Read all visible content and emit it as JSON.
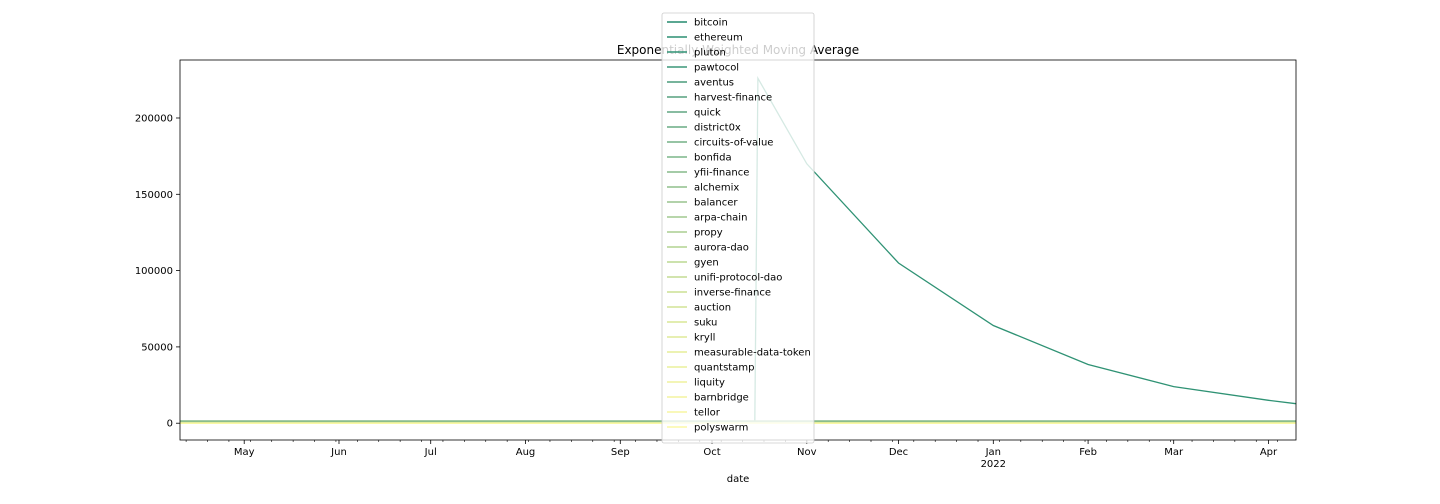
{
  "chart_data": {
    "type": "line",
    "title": "Exponentially Weighted Moving Average",
    "xlabel": "date",
    "ylabel": "",
    "x_range": [
      "2021-04-10",
      "2022-04-10"
    ],
    "ylim": [
      -11000,
      238000
    ],
    "y_ticks": [
      0,
      50000,
      100000,
      150000,
      200000
    ],
    "y_tick_labels": [
      "0",
      "50000",
      "100000",
      "150000",
      "200000"
    ],
    "x_ticks": [
      {
        "date": "2021-05-01",
        "label": "May",
        "sublabel": ""
      },
      {
        "date": "2021-06-01",
        "label": "Jun",
        "sublabel": ""
      },
      {
        "date": "2021-07-01",
        "label": "Jul",
        "sublabel": ""
      },
      {
        "date": "2021-08-01",
        "label": "Aug",
        "sublabel": ""
      },
      {
        "date": "2021-09-01",
        "label": "Sep",
        "sublabel": ""
      },
      {
        "date": "2021-10-01",
        "label": "Oct",
        "sublabel": ""
      },
      {
        "date": "2021-11-01",
        "label": "Nov",
        "sublabel": ""
      },
      {
        "date": "2021-12-01",
        "label": "Dec",
        "sublabel": ""
      },
      {
        "date": "2022-01-01",
        "label": "Jan",
        "sublabel": "2022"
      },
      {
        "date": "2022-02-01",
        "label": "Feb",
        "sublabel": ""
      },
      {
        "date": "2022-03-01",
        "label": "Mar",
        "sublabel": ""
      },
      {
        "date": "2022-04-01",
        "label": "Apr",
        "sublabel": ""
      }
    ],
    "grid": false,
    "legend_position": "top-center",
    "series": [
      {
        "name": "bitcoin",
        "color": "#238a6e",
        "points": [
          [
            "2021-04-10",
            1000
          ],
          [
            "2022-04-10",
            1000
          ]
        ]
      },
      {
        "name": "ethereum",
        "color": "#2b8f72",
        "points": [
          [
            "2021-04-10",
            300
          ],
          [
            "2022-04-10",
            300
          ]
        ]
      },
      {
        "name": "pluton",
        "color": "#2f9274",
        "points": [
          [
            "2021-10-15",
            0
          ],
          [
            "2021-10-16",
            226000
          ],
          [
            "2021-11-01",
            170000
          ],
          [
            "2021-12-01",
            105000
          ],
          [
            "2022-01-01",
            64000
          ],
          [
            "2022-02-01",
            38500
          ],
          [
            "2022-03-01",
            24000
          ],
          [
            "2022-04-01",
            15000
          ],
          [
            "2022-04-10",
            12800
          ]
        ]
      },
      {
        "name": "pawtocol",
        "color": "#3c9778",
        "points": [
          [
            "2021-04-10",
            100
          ],
          [
            "2022-04-10",
            100
          ]
        ]
      },
      {
        "name": "aventus",
        "color": "#4a9c7c",
        "points": [
          [
            "2021-04-10",
            100
          ],
          [
            "2022-04-10",
            100
          ]
        ]
      },
      {
        "name": "harvest-finance",
        "color": "#56a17f",
        "points": [
          [
            "2021-04-10",
            200
          ],
          [
            "2022-04-10",
            200
          ]
        ]
      },
      {
        "name": "quick",
        "color": "#60a682",
        "points": [
          [
            "2021-04-10",
            300
          ],
          [
            "2022-04-10",
            300
          ]
        ]
      },
      {
        "name": "district0x",
        "color": "#69ab84",
        "points": [
          [
            "2021-04-10",
            100
          ],
          [
            "2022-04-10",
            100
          ]
        ]
      },
      {
        "name": "circuits-of-value",
        "color": "#73b086",
        "points": [
          [
            "2021-04-10",
            100
          ],
          [
            "2022-04-10",
            100
          ]
        ]
      },
      {
        "name": "bonfida",
        "color": "#7cb588",
        "points": [
          [
            "2021-04-10",
            100
          ],
          [
            "2022-04-10",
            100
          ]
        ]
      },
      {
        "name": "yfii-finance",
        "color": "#85ba8a",
        "points": [
          [
            "2021-04-10",
            1500
          ],
          [
            "2022-04-10",
            1500
          ]
        ]
      },
      {
        "name": "alchemix",
        "color": "#8fbf8c",
        "points": [
          [
            "2021-04-10",
            800
          ],
          [
            "2022-04-10",
            800
          ]
        ]
      },
      {
        "name": "balancer",
        "color": "#98c48d",
        "points": [
          [
            "2021-04-10",
            200
          ],
          [
            "2022-04-10",
            200
          ]
        ]
      },
      {
        "name": "arpa-chain",
        "color": "#a1c98f",
        "points": [
          [
            "2021-04-10",
            100
          ],
          [
            "2022-04-10",
            100
          ]
        ]
      },
      {
        "name": "propy",
        "color": "#aace90",
        "points": [
          [
            "2021-04-10",
            100
          ],
          [
            "2022-04-10",
            100
          ]
        ]
      },
      {
        "name": "aurora-dao",
        "color": "#b2d391",
        "points": [
          [
            "2021-04-10",
            100
          ],
          [
            "2022-04-10",
            100
          ]
        ]
      },
      {
        "name": "gyen",
        "color": "#bbd892",
        "points": [
          [
            "2021-04-10",
            100
          ],
          [
            "2022-04-10",
            100
          ]
        ]
      },
      {
        "name": "unifi-protocol-dao",
        "color": "#c3dc93",
        "points": [
          [
            "2021-04-10",
            100
          ],
          [
            "2022-04-10",
            100
          ]
        ]
      },
      {
        "name": "inverse-finance",
        "color": "#cbe094",
        "points": [
          [
            "2021-04-10",
            400
          ],
          [
            "2022-04-10",
            400
          ]
        ]
      },
      {
        "name": "auction",
        "color": "#d2e495",
        "points": [
          [
            "2021-04-10",
            100
          ],
          [
            "2022-04-10",
            100
          ]
        ]
      },
      {
        "name": "suku",
        "color": "#d9e796",
        "points": [
          [
            "2021-04-10",
            100
          ],
          [
            "2022-04-10",
            100
          ]
        ]
      },
      {
        "name": "kryll",
        "color": "#dfea98",
        "points": [
          [
            "2021-04-10",
            100
          ],
          [
            "2022-04-10",
            100
          ]
        ]
      },
      {
        "name": "measurable-data-token",
        "color": "#e5ed99",
        "points": [
          [
            "2021-04-10",
            100
          ],
          [
            "2022-04-10",
            100
          ]
        ]
      },
      {
        "name": "quantstamp",
        "color": "#eaf09b",
        "points": [
          [
            "2021-04-10",
            100
          ],
          [
            "2022-04-10",
            100
          ]
        ]
      },
      {
        "name": "liquity",
        "color": "#eff29d",
        "points": [
          [
            "2021-04-10",
            100
          ],
          [
            "2022-04-10",
            100
          ]
        ]
      },
      {
        "name": "barnbridge",
        "color": "#f3f49f",
        "points": [
          [
            "2021-04-10",
            100
          ],
          [
            "2022-04-10",
            100
          ]
        ]
      },
      {
        "name": "tellor",
        "color": "#f7f6a2",
        "points": [
          [
            "2021-04-10",
            100
          ],
          [
            "2022-04-10",
            100
          ]
        ]
      },
      {
        "name": "polyswarm",
        "color": "#fbf9a5",
        "points": [
          [
            "2021-04-10",
            100
          ],
          [
            "2022-04-10",
            100
          ]
        ]
      }
    ]
  }
}
